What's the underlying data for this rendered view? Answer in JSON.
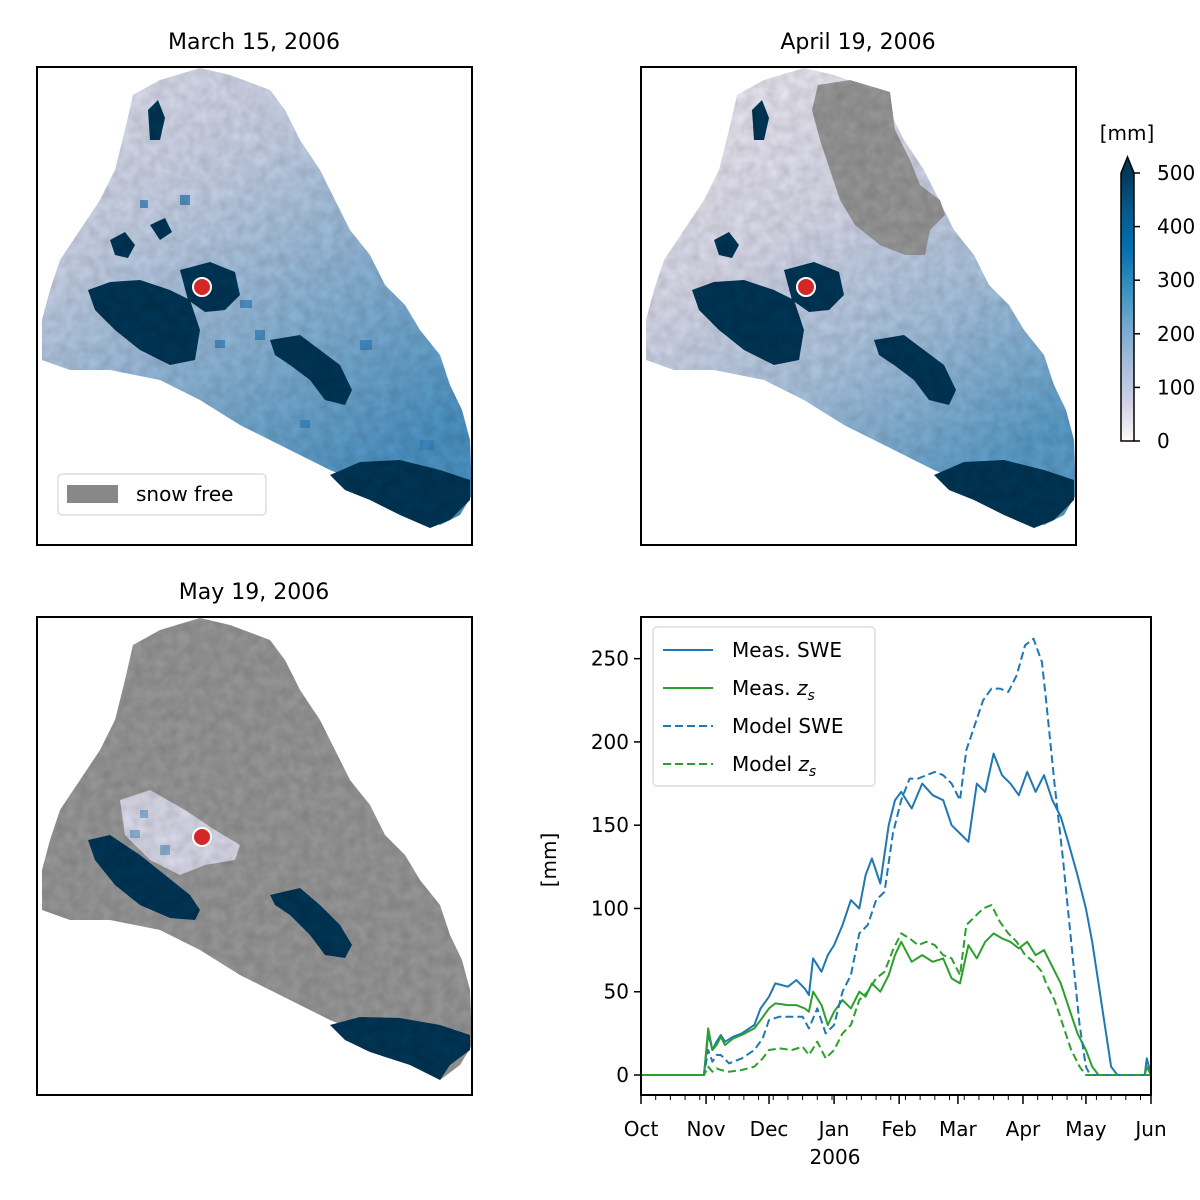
{
  "maps": [
    {
      "title": "March 15, 2006",
      "stage": "march",
      "legend": "snow free"
    },
    {
      "title": "April 19, 2006",
      "stage": "april"
    },
    {
      "title": "May 19, 2006",
      "stage": "may"
    }
  ],
  "colorbar": {
    "label": "[mm]",
    "ticks": [
      "0",
      "100",
      "200",
      "300",
      "400",
      "500"
    ],
    "range": [
      0,
      500
    ],
    "extend": "max",
    "cmap_colors": [
      "#fff7fb",
      "#d0d1e6",
      "#a6bddb",
      "#74a9cf",
      "#3690c0",
      "#0570b0",
      "#045a8d",
      "#023858"
    ],
    "snow_free_color": "#9a9a9a",
    "station_marker_color": "#d62728"
  },
  "chart_data": {
    "type": "line",
    "ylabel": "[mm]",
    "xlabel": "2006",
    "ylim": [
      -12,
      275
    ],
    "yticks": [
      0,
      50,
      100,
      150,
      200,
      250
    ],
    "x_range": [
      "2005-10-01",
      "2006-06-01"
    ],
    "xtick_labels": [
      "Oct",
      "Nov",
      "Dec",
      "Jan",
      "Feb",
      "Mar",
      "Apr",
      "May",
      "Jun"
    ],
    "xtick_dates": [
      "2005-10-01",
      "2005-11-01",
      "2005-12-01",
      "2006-01-01",
      "2006-02-01",
      "2006-03-01",
      "2006-04-01",
      "2006-05-01",
      "2006-06-01"
    ],
    "legend_location": "upper left",
    "series": [
      {
        "name": "Meas. SWE",
        "name_sub": "",
        "color": "#1f77b4",
        "dash": "solid",
        "x": [
          "2005-10-01",
          "2005-10-03",
          "2005-10-15",
          "2005-10-31",
          "2005-11-02",
          "2005-11-04",
          "2005-11-06",
          "2005-11-08",
          "2005-11-10",
          "2005-11-14",
          "2005-11-18",
          "2005-11-24",
          "2005-11-27",
          "2005-12-01",
          "2005-12-04",
          "2005-12-10",
          "2005-12-14",
          "2005-12-18",
          "2005-12-20",
          "2005-12-22",
          "2005-12-26",
          "2005-12-29",
          "2006-01-01",
          "2006-01-05",
          "2006-01-09",
          "2006-01-13",
          "2006-01-16",
          "2006-01-19",
          "2006-01-23",
          "2006-01-27",
          "2006-01-30",
          "2006-02-02",
          "2006-02-07",
          "2006-02-12",
          "2006-02-17",
          "2006-02-22",
          "2006-02-26",
          "2006-03-02",
          "2006-03-06",
          "2006-03-10",
          "2006-03-14",
          "2006-03-18",
          "2006-03-22",
          "2006-03-26",
          "2006-03-30",
          "2006-04-03",
          "2006-04-07",
          "2006-04-11",
          "2006-04-15",
          "2006-04-19",
          "2006-04-23",
          "2006-04-27",
          "2006-05-01",
          "2006-05-04",
          "2006-05-07",
          "2006-05-10",
          "2006-05-13",
          "2006-05-16",
          "2006-05-19",
          "2006-05-26",
          "2006-05-29",
          "2006-05-30",
          "2006-06-01"
        ],
        "y": [
          0,
          0,
          0,
          0,
          25,
          15,
          20,
          24,
          20,
          23,
          25,
          30,
          40,
          47,
          55,
          53,
          57,
          52,
          48,
          70,
          62,
          72,
          78,
          90,
          105,
          100,
          120,
          130,
          115,
          150,
          165,
          170,
          160,
          175,
          168,
          165,
          150,
          145,
          140,
          175,
          170,
          193,
          180,
          175,
          168,
          182,
          170,
          180,
          165,
          155,
          138,
          120,
          100,
          80,
          55,
          30,
          5,
          0,
          0,
          0,
          0,
          10,
          0
        ]
      },
      {
        "name": "Meas. ",
        "name_sub": "s",
        "name_var": "z",
        "color": "#2ca02c",
        "dash": "solid",
        "x": [
          "2005-10-01",
          "2005-10-03",
          "2005-10-15",
          "2005-10-31",
          "2005-11-02",
          "2005-11-04",
          "2005-11-06",
          "2005-11-08",
          "2005-11-10",
          "2005-11-14",
          "2005-11-18",
          "2005-11-24",
          "2005-11-27",
          "2005-12-01",
          "2005-12-04",
          "2005-12-10",
          "2005-12-14",
          "2005-12-18",
          "2005-12-20",
          "2005-12-22",
          "2005-12-26",
          "2005-12-29",
          "2006-01-01",
          "2006-01-05",
          "2006-01-09",
          "2006-01-13",
          "2006-01-16",
          "2006-01-19",
          "2006-01-23",
          "2006-01-27",
          "2006-01-30",
          "2006-02-02",
          "2006-02-07",
          "2006-02-12",
          "2006-02-17",
          "2006-02-22",
          "2006-02-26",
          "2006-03-02",
          "2006-03-06",
          "2006-03-10",
          "2006-03-14",
          "2006-03-18",
          "2006-03-22",
          "2006-03-26",
          "2006-03-30",
          "2006-04-03",
          "2006-04-07",
          "2006-04-11",
          "2006-04-15",
          "2006-04-19",
          "2006-04-23",
          "2006-04-27",
          "2006-05-01",
          "2006-05-04",
          "2006-05-07",
          "2006-05-10",
          "2006-05-13",
          "2006-05-16",
          "2006-05-19",
          "2006-05-26",
          "2006-05-29",
          "2006-05-30",
          "2006-06-01"
        ],
        "y": [
          0,
          0,
          0,
          0,
          28,
          15,
          18,
          23,
          18,
          22,
          24,
          28,
          33,
          40,
          43,
          42,
          42,
          40,
          38,
          50,
          42,
          30,
          38,
          45,
          40,
          50,
          47,
          55,
          50,
          60,
          72,
          80,
          68,
          72,
          68,
          70,
          58,
          55,
          78,
          70,
          80,
          85,
          82,
          80,
          76,
          80,
          72,
          75,
          65,
          55,
          40,
          25,
          15,
          5,
          0,
          0,
          0,
          0,
          0,
          0,
          0,
          5,
          0
        ]
      },
      {
        "name": "Model SWE",
        "name_sub": "",
        "color": "#1f77b4",
        "dash": "dashed",
        "x": [
          "2005-10-01",
          "2005-10-03",
          "2005-10-15",
          "2005-10-31",
          "2005-11-02",
          "2005-11-04",
          "2005-11-06",
          "2005-11-08",
          "2005-11-12",
          "2005-11-18",
          "2005-11-24",
          "2005-11-28",
          "2005-12-01",
          "2005-12-06",
          "2005-12-12",
          "2005-12-17",
          "2005-12-20",
          "2005-12-24",
          "2005-12-28",
          "2006-01-01",
          "2006-01-05",
          "2006-01-09",
          "2006-01-13",
          "2006-01-17",
          "2006-01-21",
          "2006-01-25",
          "2006-01-29",
          "2006-02-02",
          "2006-02-06",
          "2006-02-10",
          "2006-02-14",
          "2006-02-18",
          "2006-02-22",
          "2006-02-26",
          "2006-03-02",
          "2006-03-05",
          "2006-03-09",
          "2006-03-13",
          "2006-03-17",
          "2006-03-21",
          "2006-03-25",
          "2006-03-29",
          "2006-04-02",
          "2006-04-06",
          "2006-04-10",
          "2006-04-12",
          "2006-04-16",
          "2006-04-20",
          "2006-04-24",
          "2006-04-28",
          "2006-05-01",
          "2006-05-03",
          "2006-05-06",
          "2006-05-10",
          "2006-05-15",
          "2006-05-25",
          "2006-05-30",
          "2006-06-01"
        ],
        "y": [
          0,
          0,
          0,
          0,
          15,
          8,
          12,
          12,
          7,
          10,
          15,
          22,
          33,
          35,
          35,
          35,
          28,
          40,
          25,
          30,
          50,
          60,
          85,
          90,
          105,
          110,
          145,
          165,
          178,
          178,
          180,
          182,
          180,
          175,
          165,
          195,
          210,
          225,
          232,
          232,
          230,
          240,
          258,
          262,
          248,
          225,
          175,
          130,
          80,
          30,
          5,
          0,
          0,
          0,
          0,
          0,
          0,
          0
        ]
      },
      {
        "name": "Model ",
        "name_sub": "s",
        "name_var": "z",
        "color": "#2ca02c",
        "dash": "dashed",
        "x": [
          "2005-10-01",
          "2005-10-03",
          "2005-10-15",
          "2005-10-31",
          "2005-11-02",
          "2005-11-04",
          "2005-11-06",
          "2005-11-08",
          "2005-11-12",
          "2005-11-18",
          "2005-11-24",
          "2005-11-28",
          "2005-12-01",
          "2005-12-06",
          "2005-12-12",
          "2005-12-17",
          "2005-12-20",
          "2005-12-24",
          "2005-12-28",
          "2006-01-01",
          "2006-01-05",
          "2006-01-09",
          "2006-01-13",
          "2006-01-17",
          "2006-01-21",
          "2006-01-25",
          "2006-01-29",
          "2006-02-02",
          "2006-02-06",
          "2006-02-10",
          "2006-02-14",
          "2006-02-18",
          "2006-02-22",
          "2006-02-26",
          "2006-03-02",
          "2006-03-05",
          "2006-03-09",
          "2006-03-13",
          "2006-03-17",
          "2006-03-21",
          "2006-03-25",
          "2006-03-29",
          "2006-04-02",
          "2006-04-06",
          "2006-04-10",
          "2006-04-12",
          "2006-04-16",
          "2006-04-20",
          "2006-04-24",
          "2006-04-28",
          "2006-05-01",
          "2006-05-03",
          "2006-05-06",
          "2006-05-10",
          "2006-05-15",
          "2006-05-25",
          "2006-05-30",
          "2006-06-01"
        ],
        "y": [
          0,
          0,
          0,
          0,
          5,
          2,
          4,
          3,
          2,
          3,
          5,
          10,
          15,
          16,
          15,
          17,
          12,
          20,
          10,
          15,
          25,
          30,
          45,
          50,
          58,
          62,
          75,
          85,
          82,
          78,
          80,
          78,
          72,
          70,
          60,
          90,
          95,
          100,
          102,
          92,
          85,
          80,
          72,
          68,
          62,
          55,
          45,
          30,
          15,
          5,
          0,
          0,
          0,
          0,
          0,
          0,
          0,
          0
        ]
      }
    ]
  }
}
